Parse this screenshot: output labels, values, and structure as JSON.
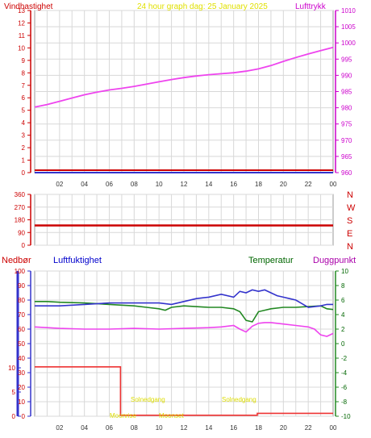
{
  "chart_data": [
    {
      "type": "line",
      "title": "24 hour graph dag:  25 January 2025",
      "left_axis_label": "Vindhastighet",
      "right_axis_label": "Lufttrykk",
      "x_ticks": [
        "02",
        "04",
        "06",
        "08",
        "10",
        "12",
        "14",
        "16",
        "18",
        "20",
        "22",
        "00"
      ],
      "left_ylim": [
        0,
        13
      ],
      "left_ticks": [
        0,
        1,
        2,
        3,
        4,
        5,
        6,
        7,
        8,
        9,
        10,
        11,
        12,
        13
      ],
      "right_ylim": [
        960,
        1010
      ],
      "right_ticks": [
        960,
        965,
        970,
        975,
        980,
        985,
        990,
        995,
        1000,
        1005,
        1010
      ],
      "colors": {
        "left": "#cc0000",
        "right": "#cc00cc",
        "wind": "#cc0000",
        "pressure": "#ee44ee",
        "gust": "#3333cc"
      },
      "series": [
        {
          "axis": "right",
          "x": [
            0.0,
            1,
            2,
            3,
            4,
            5,
            6,
            7,
            8,
            9,
            10,
            11,
            12,
            13,
            14,
            15,
            16,
            17,
            18,
            19,
            20,
            21,
            22,
            23,
            24
          ],
          "values": [
            980.2,
            981.0,
            982.0,
            983.0,
            984.0,
            984.8,
            985.5,
            986.0,
            986.6,
            987.3,
            988.0,
            988.7,
            989.3,
            989.8,
            990.2,
            990.5,
            990.8,
            991.3,
            992.0,
            993.0,
            994.3,
            995.5,
            996.6,
            997.6,
            998.6
          ]
        },
        {
          "axis": "left",
          "x": [
            0,
            24
          ],
          "values": [
            0,
            0
          ]
        }
      ]
    },
    {
      "type": "line",
      "y_ticks": [
        0,
        90,
        180,
        270,
        360
      ],
      "ylim": [
        0,
        360
      ],
      "compass": [
        "N",
        "W",
        "S",
        "E",
        "N"
      ],
      "colors": {
        "axis": "#cc0000",
        "direction": "#cc0000"
      },
      "series": [
        {
          "x": [
            0,
            24
          ],
          "values": [
            140,
            140
          ]
        }
      ]
    },
    {
      "type": "line",
      "labels": {
        "rain": "Nedbør",
        "humidity": "Luftfuktighet",
        "temperature": "Temperatur",
        "dewpoint": "Duggpunkt"
      },
      "rain_ticks": [
        0,
        5,
        10
      ],
      "rain_ylim": [
        0,
        30
      ],
      "humidity_ticks": [
        0,
        10,
        20,
        30,
        40,
        50,
        60,
        70,
        80,
        90,
        100
      ],
      "humidity_ylim": [
        0,
        100
      ],
      "temp_ticks": [
        -10,
        -8,
        -6,
        -4,
        -2,
        0,
        2,
        4,
        6,
        8,
        10
      ],
      "temp_ylim": [
        -10,
        10
      ],
      "x_ticks": [
        "02",
        "04",
        "06",
        "08",
        "10",
        "12",
        "14",
        "16",
        "18",
        "20",
        "22",
        "00"
      ],
      "annotations": [
        "Solnedgang",
        "Solnedgang",
        "Moonrise",
        "Moonset"
      ],
      "colors": {
        "rain": "#ee3333",
        "humidity": "#3333cc",
        "temperature": "#228822",
        "dewpoint": "#ee44ee",
        "text": "#cc0000",
        "humidity_text": "#0000cc",
        "temp_text": "#006600",
        "dew_text": "#aa00aa",
        "annotation": "#dddd00"
      },
      "series": [
        {
          "name": "Luftfuktighet",
          "axis": "humidity",
          "x": [
            0,
            2,
            4,
            6,
            8,
            10,
            11,
            12,
            13,
            14,
            15,
            16,
            16.5,
            17,
            17.5,
            18,
            18.5,
            19,
            19.5,
            20,
            20.5,
            21,
            22,
            23,
            23.5,
            24
          ],
          "values": [
            76,
            76,
            77,
            78,
            78,
            78,
            77,
            79,
            81,
            82,
            84,
            82,
            86,
            85,
            87,
            86,
            87,
            85,
            83,
            82,
            81,
            80,
            75,
            76,
            77,
            77
          ]
        },
        {
          "name": "Temperatur",
          "axis": "temp",
          "x": [
            0,
            1,
            2,
            4,
            6,
            8,
            9,
            10,
            10.5,
            11,
            12,
            14,
            15,
            16,
            16.5,
            17,
            17.5,
            18,
            18.5,
            19,
            20,
            21,
            22,
            23,
            23.5,
            24
          ],
          "values": [
            5.8,
            5.8,
            5.7,
            5.6,
            5.4,
            5.2,
            5.0,
            4.8,
            4.6,
            5.0,
            5.2,
            5.0,
            5.0,
            4.8,
            4.4,
            3.2,
            3.0,
            4.4,
            4.6,
            4.8,
            5.0,
            5.0,
            5.1,
            5.2,
            4.8,
            4.7
          ]
        },
        {
          "name": "Duggpunkt",
          "axis": "temp",
          "x": [
            0,
            1,
            2,
            4,
            6,
            8,
            10,
            12,
            14,
            15,
            16,
            16.5,
            17,
            17.5,
            18,
            18.5,
            19,
            20,
            21,
            22,
            22.5,
            23,
            23.5,
            24
          ],
          "values": [
            2.3,
            2.2,
            2.1,
            2.0,
            2.0,
            2.1,
            2.0,
            2.1,
            2.2,
            2.3,
            2.5,
            2.0,
            1.6,
            2.4,
            2.8,
            2.9,
            2.9,
            2.7,
            2.5,
            2.3,
            2.0,
            1.2,
            1.0,
            1.4
          ]
        },
        {
          "name": "Nedbør",
          "axis": "rain",
          "x": [
            0,
            6.9,
            6.9,
            17.9,
            17.9,
            24
          ],
          "values": [
            10.2,
            10.2,
            0.2,
            0.2,
            0.6,
            0.6
          ]
        }
      ]
    }
  ]
}
